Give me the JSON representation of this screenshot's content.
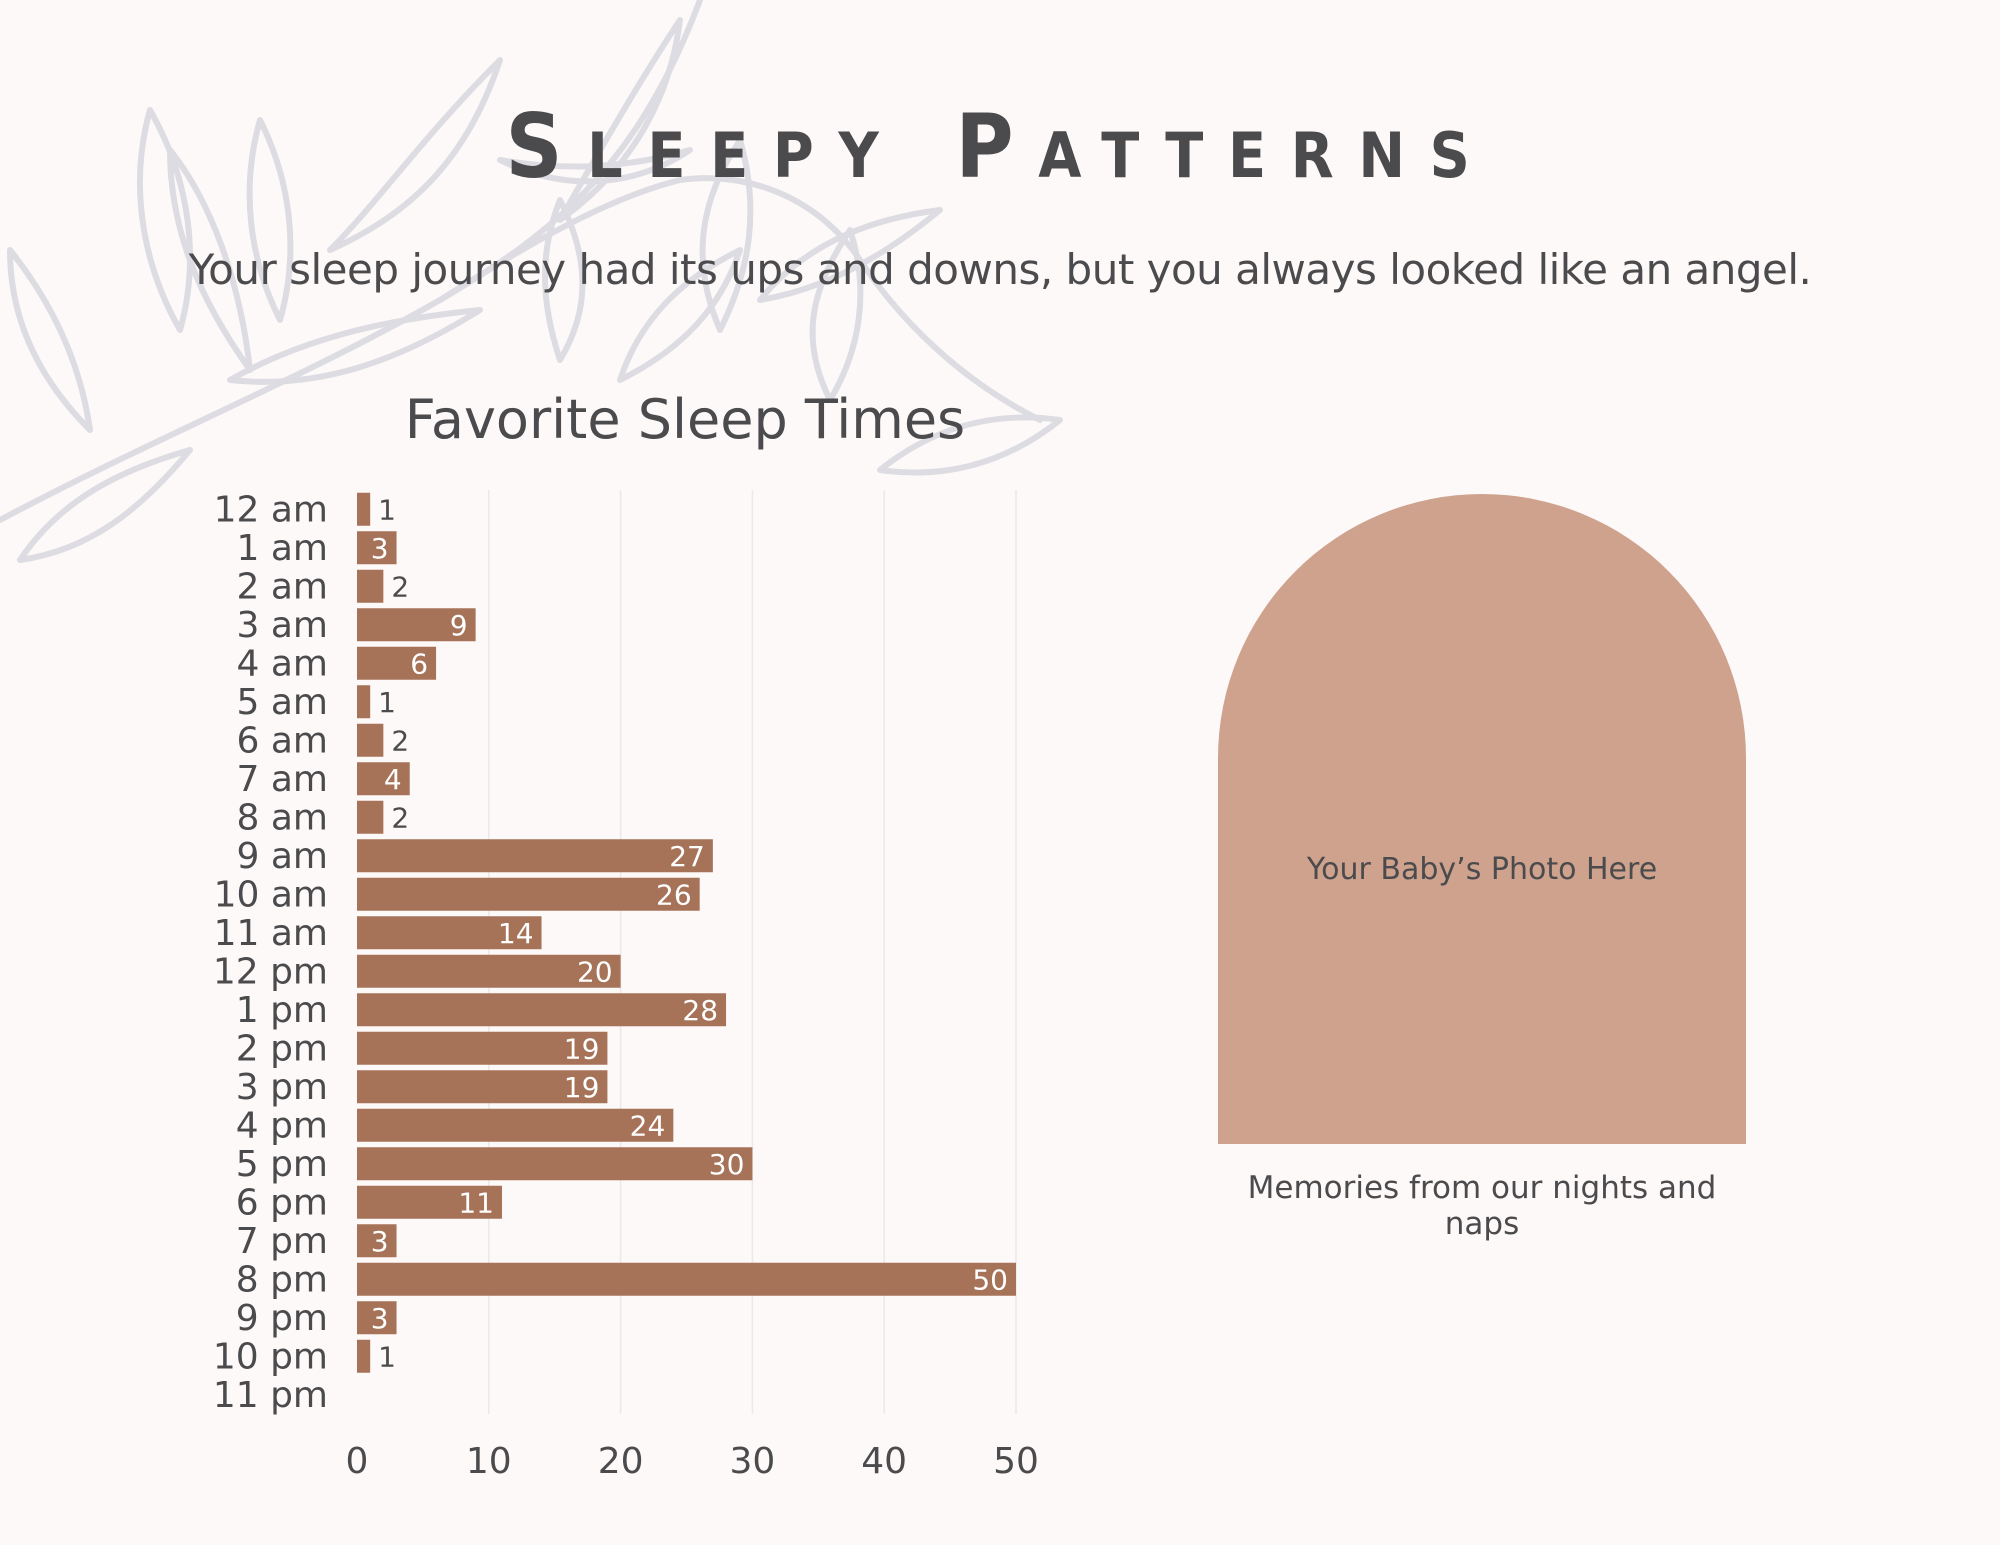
{
  "page": {
    "title": "Sleepy Patterns",
    "subtitle": "Your sleep journey had its ups and downs, but you always looked like an angel."
  },
  "photo": {
    "placeholder": "Your Baby’s Photo Here",
    "caption": "Memories from our nights and naps"
  },
  "colors": {
    "background": "#fdf9f8",
    "bar": "#a67258",
    "arch": "#cfa28e",
    "text": "#4b4b4d",
    "leaf": "#dddce2"
  },
  "icons": [
    "leaf-branch-decoration"
  ],
  "chart_data": {
    "type": "bar",
    "orientation": "horizontal",
    "title": "Favorite Sleep Times",
    "categories": [
      "12 am",
      "1 am",
      "2 am",
      "3 am",
      "4 am",
      "5 am",
      "6 am",
      "7 am",
      "8 am",
      "9 am",
      "10 am",
      "11 am",
      "12 pm",
      "1 pm",
      "2 pm",
      "3 pm",
      "4 pm",
      "5 pm",
      "6 pm",
      "7 pm",
      "8 pm",
      "9 pm",
      "10 pm",
      "11 pm"
    ],
    "values": [
      1,
      3,
      2,
      9,
      6,
      1,
      2,
      4,
      2,
      27,
      26,
      14,
      20,
      28,
      19,
      19,
      24,
      30,
      11,
      3,
      50,
      3,
      1,
      0
    ],
    "xlim": [
      0,
      50
    ],
    "xticks": [
      0,
      10,
      20,
      30,
      40,
      50
    ],
    "grid": true,
    "data_labels": true
  }
}
